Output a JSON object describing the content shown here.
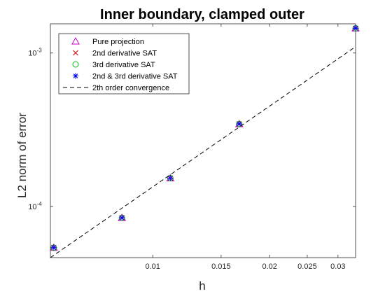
{
  "chart_data": {
    "type": "scatter",
    "title": "Inner boundary, clamped outer",
    "xlabel": "h",
    "ylabel": "L2 norm of error",
    "xscale": "log",
    "yscale": "log",
    "xlim": [
      0.00545,
      0.0333
    ],
    "ylim": [
      4.65e-05,
      0.00155
    ],
    "grid": false,
    "legend_position": "top-left",
    "x_ticks": [
      {
        "value": 0.01,
        "label": "0.01"
      },
      {
        "value": 0.015,
        "label": "0.015"
      },
      {
        "value": 0.02,
        "label": "0.02"
      },
      {
        "value": 0.025,
        "label": "0.025"
      },
      {
        "value": 0.03,
        "label": "0.03"
      }
    ],
    "y_ticks": [
      {
        "value": 0.0001,
        "base": "10",
        "exp": "-4"
      },
      {
        "value": 0.001,
        "base": "10",
        "exp": "-3"
      }
    ],
    "x": [
      0.00556,
      0.00833,
      0.0111,
      0.0167,
      0.0333
    ],
    "series": [
      {
        "name": "Pure projection",
        "marker": "triangle",
        "color": "#cc00cc",
        "values": [
          5.4e-05,
          8.45e-05,
          0.000153,
          0.000345,
          0.00145
        ]
      },
      {
        "name": "2nd derivative SAT",
        "marker": "x",
        "color": "#dd0000",
        "values": [
          5.4e-05,
          8.45e-05,
          0.000153,
          0.000345,
          0.00145
        ]
      },
      {
        "name": "3rd derivative SAT",
        "marker": "circle",
        "color": "#00bb00",
        "values": [
          5.4e-05,
          8.45e-05,
          0.000153,
          0.000345,
          0.00145
        ]
      },
      {
        "name": "2nd & 3rd derivative SAT",
        "marker": "asterisk",
        "color": "#0000ee",
        "values": [
          5.4e-05,
          8.45e-05,
          0.000153,
          0.000345,
          0.00145
        ]
      },
      {
        "name": "2th order convergence",
        "marker": "dashed-line",
        "color": "#000000",
        "x": [
          0.00545,
          0.0333
        ],
        "values": [
          4.65e-05,
          0.0011
        ]
      }
    ]
  }
}
